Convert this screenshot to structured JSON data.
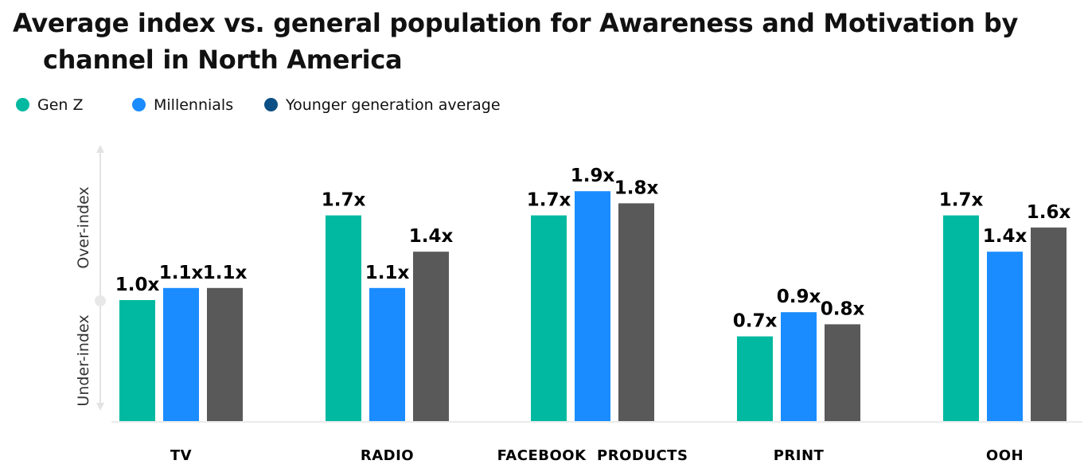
{
  "title": {
    "line1": "Average index vs. general population for Awareness and Motivation by",
    "line2": "channel in North America"
  },
  "legend": [
    {
      "label": "Gen Z",
      "color": "#00b9a0"
    },
    {
      "label": "Millennials",
      "color": "#1a8cff"
    },
    {
      "label": "Younger generation average",
      "color": "#0b4f84"
    }
  ],
  "chart_data": {
    "type": "bar",
    "categories": [
      "TV",
      "RADIO",
      "FACEBOOK  PRODUCTS",
      "PRINT",
      "OOH"
    ],
    "series": [
      {
        "name": "Gen Z",
        "color": "#00b9a0",
        "values": [
          1.0,
          1.7,
          1.7,
          0.7,
          1.7
        ],
        "labels": [
          "1.0x",
          "1.7x",
          "1.7x",
          "0.7x",
          "1.7x"
        ]
      },
      {
        "name": "Millennials",
        "color": "#1a8cff",
        "values": [
          1.1,
          1.1,
          1.9,
          0.9,
          1.4
        ],
        "labels": [
          "1.1x",
          "1.1x",
          "1.9x",
          "0.9x",
          "1.4x"
        ]
      },
      {
        "name": "Younger generation average",
        "color": "#595959",
        "values": [
          1.1,
          1.4,
          1.8,
          0.8,
          1.6
        ],
        "labels": [
          "1.1x",
          "1.4x",
          "1.8x",
          "0.8x",
          "1.6x"
        ]
      }
    ],
    "y_axis_labels": {
      "upper": "Over-index",
      "lower": "Under-index"
    },
    "ylim": [
      0,
      2.0
    ],
    "grid": false,
    "legend_position": "top-left"
  }
}
